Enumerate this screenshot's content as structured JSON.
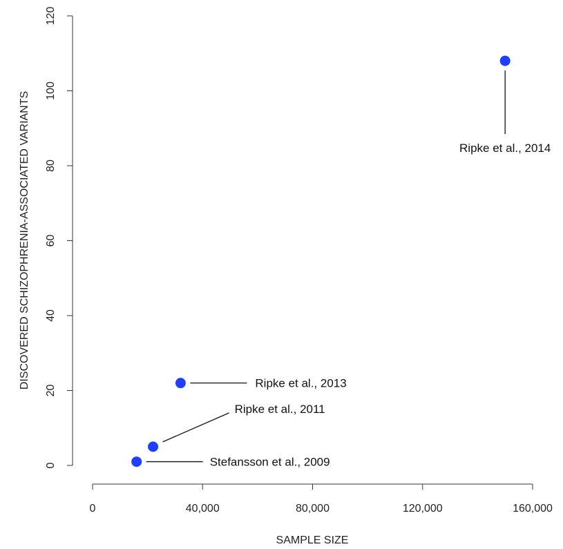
{
  "chart_data": {
    "type": "scatter",
    "title": "",
    "xlabel": "SAMPLE SIZE",
    "ylabel": "DISCOVERED SCHIZOPHRENIA-ASSOCIATED VARIANTS",
    "xlim": [
      0,
      160000
    ],
    "ylim": [
      0,
      120
    ],
    "x_ticks": [
      0,
      40000,
      80000,
      120000,
      160000
    ],
    "x_tick_labels": [
      "0",
      "40,000",
      "80,000",
      "120,000",
      "160,000"
    ],
    "y_ticks": [
      0,
      20,
      40,
      60,
      80,
      100,
      120
    ],
    "y_tick_labels": [
      "0",
      "20",
      "40",
      "60",
      "80",
      "100",
      "120"
    ],
    "grid": false,
    "legend": "none",
    "marker_color": "#1f3fff",
    "points": [
      {
        "x": 16000,
        "y": 1,
        "label": "Stefansson et al., 2009"
      },
      {
        "x": 22000,
        "y": 5,
        "label": "Ripke et al., 2011"
      },
      {
        "x": 32000,
        "y": 22,
        "label": "Ripke et al., 2013"
      },
      {
        "x": 150000,
        "y": 108,
        "label": "Ripke et al., 2014"
      }
    ]
  }
}
